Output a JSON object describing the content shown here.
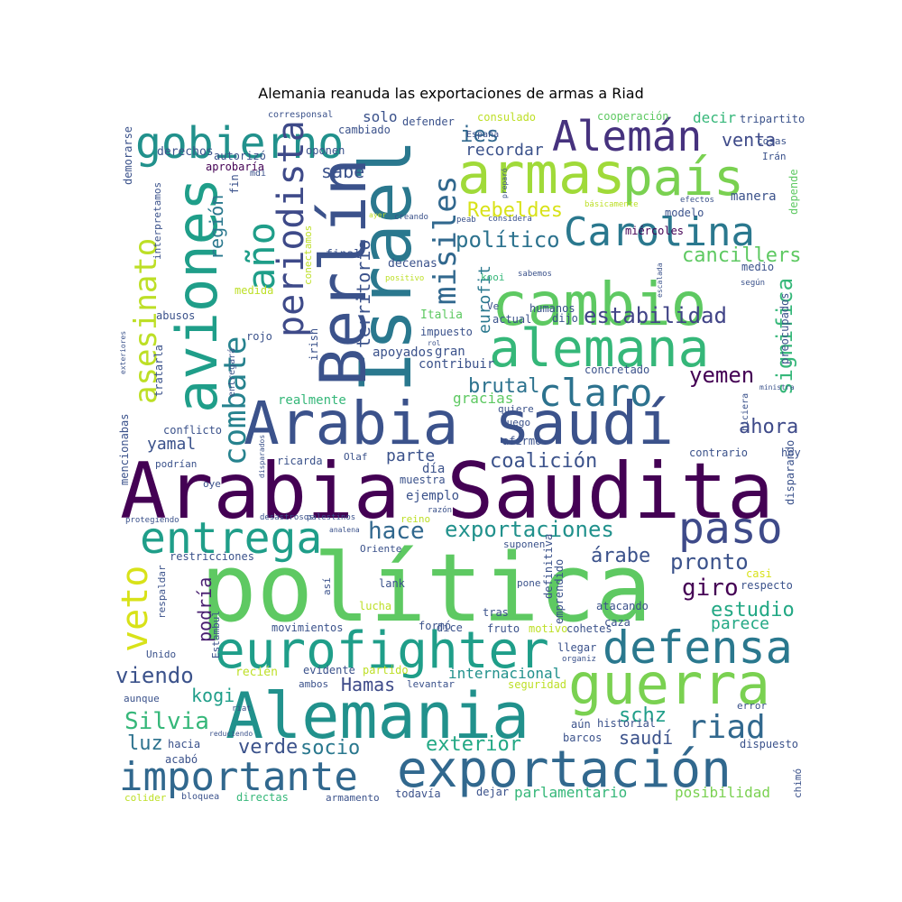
{
  "chart_data": {
    "type": "wordcloud",
    "title": "Alemania reanuda las exportaciones de armas a Riad",
    "words": [
      {
        "text": "política",
        "color": "#5ec962"
      },
      {
        "text": "Arabia Saudita",
        "color": "#440154"
      },
      {
        "text": "Arabia saudí",
        "color": "#3b528b"
      },
      {
        "text": "Alemania",
        "color": "#21918c"
      },
      {
        "text": "exportación",
        "color": "#31688e"
      },
      {
        "text": "guerra",
        "color": "#7ad151"
      },
      {
        "text": "armas",
        "color": "#a0da39"
      },
      {
        "text": "cambio",
        "color": "#5ec962"
      },
      {
        "text": "alemana",
        "color": "#35b779"
      },
      {
        "text": "Israel",
        "color": "#2a788e"
      },
      {
        "text": "Berlín",
        "color": "#3b528b"
      },
      {
        "text": "aviones",
        "color": "#1f9e89"
      },
      {
        "text": "país",
        "color": "#7ad151"
      },
      {
        "text": "eurofighter",
        "color": "#1f9e89"
      },
      {
        "text": "importante",
        "color": "#31688e"
      },
      {
        "text": "defensa",
        "color": "#2a788e"
      },
      {
        "text": "paso",
        "color": "#3e4a89"
      },
      {
        "text": "entrega",
        "color": "#1f9e89"
      },
      {
        "text": "Carolina",
        "color": "#2a788e"
      },
      {
        "text": "gobierno",
        "color": "#21918c"
      },
      {
        "text": "Alemán",
        "color": "#46327e"
      },
      {
        "text": "periodista",
        "color": "#3e4a89"
      },
      {
        "text": "claro",
        "color": "#2c728e"
      },
      {
        "text": "combate",
        "color": "#26828e"
      },
      {
        "text": "año",
        "color": "#1f9e89"
      },
      {
        "text": "asesinato",
        "color": "#bddf26"
      },
      {
        "text": "misiles",
        "color": "#31688e"
      },
      {
        "text": "riad",
        "color": "#31688e"
      },
      {
        "text": "exportaciones",
        "color": "#21918c"
      },
      {
        "text": "veto",
        "color": "#d8e219"
      },
      {
        "text": "estabilidad",
        "color": "#414487"
      },
      {
        "text": "político",
        "color": "#2c728e"
      },
      {
        "text": "significa",
        "color": "#35b779"
      },
      {
        "text": "viendo",
        "color": "#3b528b"
      },
      {
        "text": "Silvia",
        "color": "#35b779"
      },
      {
        "text": "giro",
        "color": "#440154"
      },
      {
        "text": "yemen",
        "color": "#440154"
      },
      {
        "text": "hace",
        "color": "#31688e"
      },
      {
        "text": "pronto",
        "color": "#3b528b"
      },
      {
        "text": "Rebeldes",
        "color": "#d8e219"
      },
      {
        "text": "cancillers",
        "color": "#5ec962"
      },
      {
        "text": "estudio",
        "color": "#22a884"
      },
      {
        "text": "parece",
        "color": "#22a884"
      },
      {
        "text": "ahora",
        "color": "#3e4a89"
      },
      {
        "text": "brutal",
        "color": "#2c728e"
      },
      {
        "text": "coalición",
        "color": "#3b528b"
      },
      {
        "text": "exterior",
        "color": "#22a884"
      },
      {
        "text": "socio",
        "color": "#2a788e"
      },
      {
        "text": "verde",
        "color": "#3b528b"
      },
      {
        "text": "luz",
        "color": "#2c728e"
      },
      {
        "text": "kogi",
        "color": "#1f9e89"
      },
      {
        "text": "Hamas",
        "color": "#3e4a89"
      },
      {
        "text": "schz",
        "color": "#1f9e89"
      },
      {
        "text": "saudí",
        "color": "#3b528b"
      },
      {
        "text": "árabe",
        "color": "#3b528b"
      },
      {
        "text": "venta",
        "color": "#3e4a89"
      },
      {
        "text": "ies",
        "color": "#31688e"
      },
      {
        "text": "región",
        "color": "#2a788e"
      },
      {
        "text": "territorio",
        "color": "#3b528b"
      },
      {
        "text": "sabe",
        "color": "#3b528b"
      },
      {
        "text": "podría",
        "color": "#481f70"
      },
      {
        "text": "internacional",
        "color": "#21918c"
      },
      {
        "text": "yamal",
        "color": "#3b528b"
      },
      {
        "text": "parte",
        "color": "#3b528b"
      },
      {
        "text": "recordar",
        "color": "#3b528b"
      },
      {
        "text": "eurofit",
        "color": "#2a788e"
      },
      {
        "text": "solo",
        "color": "#3b528b"
      },
      {
        "text": "decir",
        "color": "#35b779"
      },
      {
        "text": "parlamentario",
        "color": "#35b779"
      },
      {
        "text": "posibilidad",
        "color": "#7ad151"
      },
      {
        "text": "gracias",
        "color": "#5ec962"
      },
      {
        "text": "realmente",
        "color": "#35b779"
      },
      {
        "text": "apoyados",
        "color": "#3b528b"
      },
      {
        "text": "día",
        "color": "#3b528b"
      },
      {
        "text": "ejemplo",
        "color": "#3b528b"
      },
      {
        "text": "gran",
        "color": "#3b528b"
      },
      {
        "text": "contribuir",
        "color": "#3b528b"
      },
      {
        "text": "impuesto",
        "color": "#3b528b"
      },
      {
        "text": "decenas",
        "color": "#3b528b"
      },
      {
        "text": "final",
        "color": "#3b528b"
      },
      {
        "text": "humanos",
        "color": "#3b528b"
      },
      {
        "text": "actual",
        "color": "#3b528b"
      },
      {
        "text": "dijo",
        "color": "#3b528b"
      },
      {
        "text": "kooi",
        "color": "#35b779"
      },
      {
        "text": "Italia",
        "color": "#5ec962"
      },
      {
        "text": "miércoles",
        "color": "#440154"
      },
      {
        "text": "modelo",
        "color": "#3b528b"
      },
      {
        "text": "medio",
        "color": "#3b528b"
      },
      {
        "text": "manera",
        "color": "#3b528b"
      },
      {
        "text": "tripartito",
        "color": "#3b528b"
      },
      {
        "text": "consulado",
        "color": "#bddf26"
      },
      {
        "text": "cooperación",
        "color": "#5ec962"
      },
      {
        "text": "España",
        "color": "#3b528b"
      },
      {
        "text": "cambiado",
        "color": "#3b528b"
      },
      {
        "text": "defender",
        "color": "#3b528b"
      },
      {
        "text": "cosas",
        "color": "#3b528b"
      },
      {
        "text": "Irán",
        "color": "#3b528b"
      },
      {
        "text": "depende",
        "color": "#5ec962"
      },
      {
        "text": "según",
        "color": "#3b528b"
      },
      {
        "text": "preocupados",
        "color": "#3b528b"
      },
      {
        "text": "hiciera",
        "color": "#3b528b"
      },
      {
        "text": "ministra",
        "color": "#3b528b"
      },
      {
        "text": "contrario",
        "color": "#3b528b"
      },
      {
        "text": "hoy",
        "color": "#3b528b"
      },
      {
        "text": "disparando",
        "color": "#3b528b"
      },
      {
        "text": "corresponsal",
        "color": "#3b528b"
      },
      {
        "text": "oponen",
        "color": "#3b528b"
      },
      {
        "text": "derechos",
        "color": "#3b528b"
      },
      {
        "text": "autorizó",
        "color": "#3b528b"
      },
      {
        "text": "aprobaría",
        "color": "#440154"
      },
      {
        "text": "demorarse",
        "color": "#3b528b"
      },
      {
        "text": "interpretamos",
        "color": "#3b528b"
      },
      {
        "text": "medida",
        "color": "#bddf26"
      },
      {
        "text": "abusos",
        "color": "#3b528b"
      },
      {
        "text": "rojo",
        "color": "#3b528b"
      },
      {
        "text": "irish",
        "color": "#3b528b"
      },
      {
        "text": "tratarla",
        "color": "#3b528b"
      },
      {
        "text": "entregará",
        "color": "#3b528b"
      },
      {
        "text": "exteriores",
        "color": "#3b528b"
      },
      {
        "text": "conflicto",
        "color": "#3b528b"
      },
      {
        "text": "mencionabas",
        "color": "#3b528b"
      },
      {
        "text": "podrían",
        "color": "#3b528b"
      },
      {
        "text": "ricarda",
        "color": "#3b528b"
      },
      {
        "text": "Olaf",
        "color": "#3b528b"
      },
      {
        "text": "oye",
        "color": "#3b528b"
      },
      {
        "text": "muestra",
        "color": "#3b528b"
      },
      {
        "text": "afirmó",
        "color": "#3b528b"
      },
      {
        "text": "quiere",
        "color": "#3b528b"
      },
      {
        "text": "luego",
        "color": "#3b528b"
      },
      {
        "text": "concretado",
        "color": "#3b528b"
      },
      {
        "text": "protegiendo",
        "color": "#3b528b"
      },
      {
        "text": "desastrosos",
        "color": "#3b528b"
      },
      {
        "text": "palestinos",
        "color": "#3b528b"
      },
      {
        "text": "reino",
        "color": "#bddf26"
      },
      {
        "text": "razón",
        "color": "#3b528b"
      },
      {
        "text": "Oriente",
        "color": "#3b528b"
      },
      {
        "text": "restricciones",
        "color": "#3b528b"
      },
      {
        "text": "respaldar",
        "color": "#3b528b"
      },
      {
        "text": "así",
        "color": "#3b528b"
      },
      {
        "text": "lank",
        "color": "#3b528b"
      },
      {
        "text": "lucha",
        "color": "#bddf26"
      },
      {
        "text": "formó",
        "color": "#3b528b"
      },
      {
        "text": "tras",
        "color": "#3b528b"
      },
      {
        "text": "fruto",
        "color": "#3b528b"
      },
      {
        "text": "suponen",
        "color": "#3b528b"
      },
      {
        "text": "pone",
        "color": "#3b528b"
      },
      {
        "text": "definitiva",
        "color": "#3b528b"
      },
      {
        "text": "emprendido",
        "color": "#3b528b"
      },
      {
        "text": "atacando",
        "color": "#3b528b"
      },
      {
        "text": "caza",
        "color": "#3b528b"
      },
      {
        "text": "casi",
        "color": "#d8e219"
      },
      {
        "text": "respecto",
        "color": "#3b528b"
      },
      {
        "text": "movimientos",
        "color": "#3b528b"
      },
      {
        "text": "dice",
        "color": "#3b528b"
      },
      {
        "text": "motivo",
        "color": "#bddf26"
      },
      {
        "text": "cohetes",
        "color": "#3b528b"
      },
      {
        "text": "Unido",
        "color": "#3b528b"
      },
      {
        "text": "Estambul",
        "color": "#3b528b"
      },
      {
        "text": "llegar",
        "color": "#3b528b"
      },
      {
        "text": "organiz",
        "color": "#3b528b"
      },
      {
        "text": "recién",
        "color": "#bddf26"
      },
      {
        "text": "evidente",
        "color": "#3b528b"
      },
      {
        "text": "partido",
        "color": "#bddf26"
      },
      {
        "text": "ambos",
        "color": "#3b528b"
      },
      {
        "text": "levantar",
        "color": "#3b528b"
      },
      {
        "text": "seguridad",
        "color": "#bddf26"
      },
      {
        "text": "aunque",
        "color": "#3b528b"
      },
      {
        "text": "riat",
        "color": "#3b528b"
      },
      {
        "text": "error",
        "color": "#3b528b"
      },
      {
        "text": "historial",
        "color": "#3b528b"
      },
      {
        "text": "aún",
        "color": "#3b528b"
      },
      {
        "text": "barcos",
        "color": "#3b528b"
      },
      {
        "text": "dispuesto",
        "color": "#3b528b"
      },
      {
        "text": "hacia",
        "color": "#3b528b"
      },
      {
        "text": "acabó",
        "color": "#3b528b"
      },
      {
        "text": "reduciendo",
        "color": "#3b528b"
      },
      {
        "text": "chimó",
        "color": "#3b528b"
      },
      {
        "text": "colider",
        "color": "#bddf26"
      },
      {
        "text": "bloquea",
        "color": "#3b528b"
      },
      {
        "text": "directas",
        "color": "#35b779"
      },
      {
        "text": "armamento",
        "color": "#3b528b"
      },
      {
        "text": "todavía",
        "color": "#3b528b"
      },
      {
        "text": "dejar",
        "color": "#3b528b"
      },
      {
        "text": "fin",
        "color": "#3b528b"
      },
      {
        "text": "mdi",
        "color": "#3b528b"
      },
      {
        "text": "creando",
        "color": "#3b528b"
      },
      {
        "text": "peab",
        "color": "#3b528b"
      },
      {
        "text": "considera",
        "color": "#3b528b"
      },
      {
        "text": "ayer",
        "color": "#bddf26"
      },
      {
        "text": "básicamente",
        "color": "#bddf26"
      },
      {
        "text": "efectos",
        "color": "#3b528b"
      },
      {
        "text": "conectamos",
        "color": "#bddf26"
      },
      {
        "text": "positivo",
        "color": "#bddf26"
      },
      {
        "text": "sabemos",
        "color": "#3b528b"
      },
      {
        "text": "escalada",
        "color": "#3b528b"
      },
      {
        "text": "rol",
        "color": "#3b528b"
      },
      {
        "text": "Ve",
        "color": "#3b528b"
      },
      {
        "text": "preparó",
        "color": "#3b528b"
      },
      {
        "text": "analena",
        "color": "#3b528b"
      },
      {
        "text": "disparados",
        "color": "#3b528b"
      }
    ]
  }
}
